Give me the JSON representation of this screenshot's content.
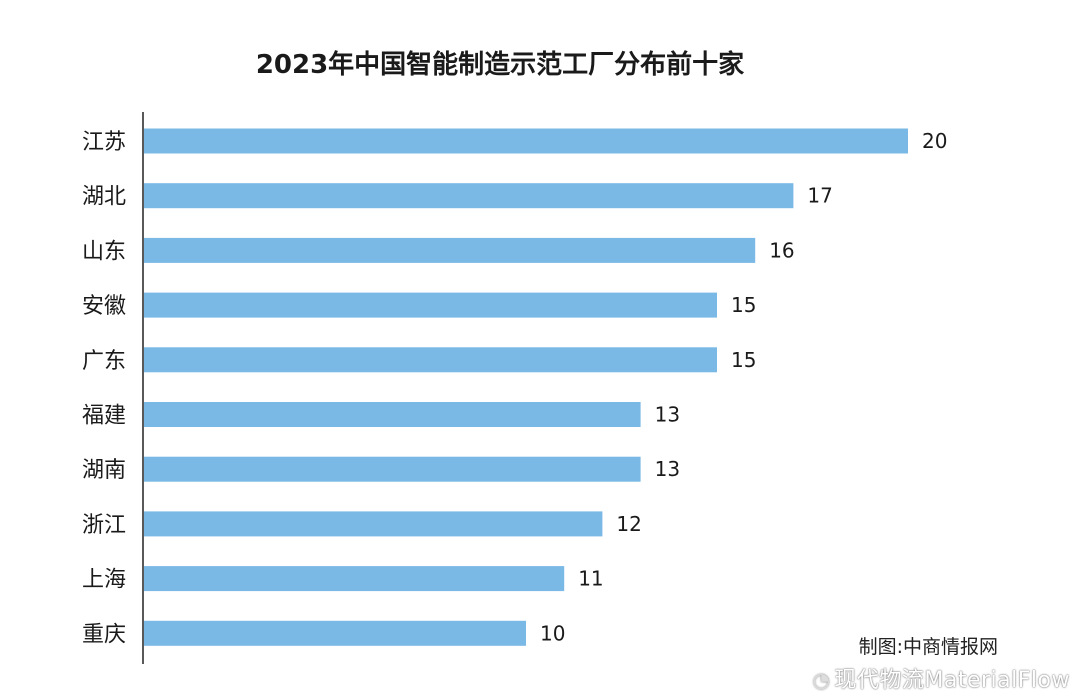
{
  "chart_data": {
    "type": "bar",
    "orientation": "horizontal",
    "title": "2023年中国智能制造示范工厂分布前十家",
    "categories": [
      "江苏",
      "湖北",
      "山东",
      "安徽",
      "广东",
      "福建",
      "湖南",
      "浙江",
      "上海",
      "重庆"
    ],
    "values": [
      20,
      17,
      16,
      15,
      15,
      13,
      13,
      12,
      11,
      10
    ],
    "xlabel": "",
    "ylabel": "",
    "xlim": [
      0,
      20
    ],
    "grid": false,
    "data_labels": true,
    "bar_color": "#7ab8e6"
  },
  "source_note": "制图:中商情报网",
  "watermark": {
    "icon": "weibo-icon",
    "text": "现代物流MaterialFlow"
  }
}
